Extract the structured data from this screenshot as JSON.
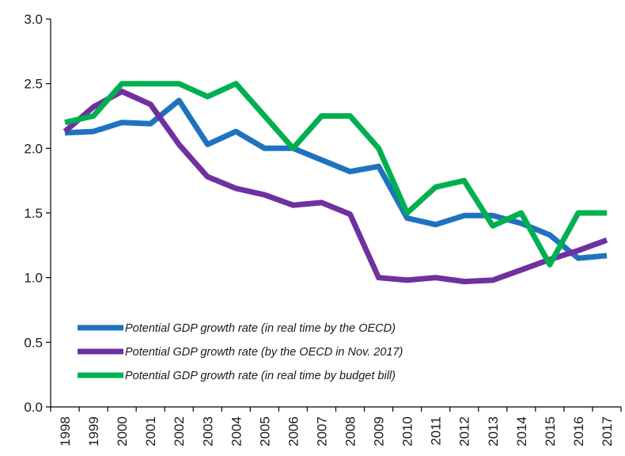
{
  "chart_data": {
    "type": "line",
    "title": "",
    "xlabel": "",
    "ylabel": "",
    "categories": [
      "1998",
      "1999",
      "2000",
      "2001",
      "2002",
      "2003",
      "2004",
      "2005",
      "2006",
      "2007",
      "2008",
      "2009",
      "2010",
      "2011",
      "2012",
      "2013",
      "2014",
      "2015",
      "2016",
      "2017"
    ],
    "ylim": [
      0.0,
      3.0
    ],
    "yticks": [
      "0.0",
      "0.5",
      "1.0",
      "1.5",
      "2.0",
      "2.5",
      "3.0"
    ],
    "grid": false,
    "legend_position": "bottom-left",
    "series": [
      {
        "name": "Potential GDP growth rate (in real time by the OECD)",
        "color": "#1f73be",
        "values": [
          2.12,
          2.13,
          2.2,
          2.19,
          2.37,
          2.03,
          2.13,
          2.0,
          2.0,
          1.91,
          1.82,
          1.86,
          1.46,
          1.41,
          1.48,
          1.48,
          1.42,
          1.33,
          1.15,
          1.17
        ]
      },
      {
        "name": "Potential GDP growth rate (by the OECD in Nov. 2017)",
        "color": "#7030a0",
        "values": [
          2.13,
          2.32,
          2.44,
          2.34,
          2.03,
          1.78,
          1.69,
          1.64,
          1.56,
          1.58,
          1.49,
          1.0,
          0.98,
          1.0,
          0.97,
          0.98,
          1.06,
          1.14,
          1.21,
          1.29
        ]
      },
      {
        "name": "Potential GDP growth rate (in real time by budget bill)",
        "color": "#00b050",
        "values": [
          2.2,
          2.25,
          2.5,
          2.5,
          2.5,
          2.4,
          2.5,
          2.25,
          2.0,
          2.25,
          2.25,
          2.0,
          1.5,
          1.7,
          1.75,
          1.4,
          1.5,
          1.1,
          1.5,
          1.5
        ]
      }
    ]
  }
}
